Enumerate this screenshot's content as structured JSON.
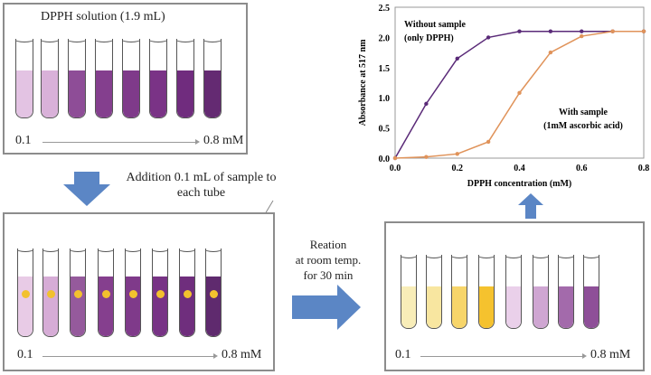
{
  "panel1": {
    "title": "DPPH solution (1.9 mL)",
    "range_start": "0.1",
    "range_end": "0.8 mM",
    "tube_colors": [
      "#e3c3e3",
      "#d9b1d9",
      "#8e4d97",
      "#843f8e",
      "#7f3a8a",
      "#7a3386",
      "#702c7e",
      "#642a72"
    ]
  },
  "step1": {
    "label": "Addition 0.1 mL of sample to each tube"
  },
  "panel2": {
    "range_start": "0.1",
    "range_end": "0.8 mM",
    "tube_colors": [
      "#e8cbe6",
      "#d6acd6",
      "#955a9c",
      "#853f8e",
      "#7f3a8a",
      "#773385",
      "#6f2e7d",
      "#5f2a6e"
    ]
  },
  "step2": {
    "line1": "Reation",
    "line2": "at room temp.",
    "line3": "for 30 min"
  },
  "panel3": {
    "range_start": "0.1",
    "range_end": "0.8 mM",
    "tube_colors": [
      "#f8edb8",
      "#f8e6a0",
      "#f7d56a",
      "#f5c22e",
      "#ead0ea",
      "#cfa6d2",
      "#a36aab",
      "#8e4f98"
    ]
  },
  "colors": {
    "arrow": "#5b86c5"
  },
  "chart_data": {
    "type": "line",
    "xlabel": "DPPH concentration (mM)",
    "ylabel": "Absorbance at 517 nm",
    "xlim": [
      0,
      0.8
    ],
    "ylim": [
      0,
      2.5
    ],
    "xticks": [
      "0.0",
      "0.2",
      "0.4",
      "0.6",
      "0.8"
    ],
    "yticks": [
      "0.0",
      "0.5",
      "1.0",
      "1.5",
      "2.0",
      "2.5"
    ],
    "x": [
      0,
      0.1,
      0.2,
      0.3,
      0.4,
      0.5,
      0.6,
      0.7,
      0.8
    ],
    "series": [
      {
        "name": "Without sample (only DPPH)",
        "label1": "Without sample",
        "label2": "(only DPPH)",
        "color": "#5a2a78",
        "values": [
          0,
          0.9,
          1.65,
          2.0,
          2.1,
          2.1,
          2.1,
          2.1,
          2.1
        ]
      },
      {
        "name": "With sample (1mM ascorbic acid)",
        "label1": "With sample",
        "label2": "(1mM ascorbic acid)",
        "color": "#e0935a",
        "values": [
          0,
          0.02,
          0.07,
          0.27,
          1.08,
          1.75,
          2.02,
          2.1,
          2.1
        ]
      }
    ]
  }
}
